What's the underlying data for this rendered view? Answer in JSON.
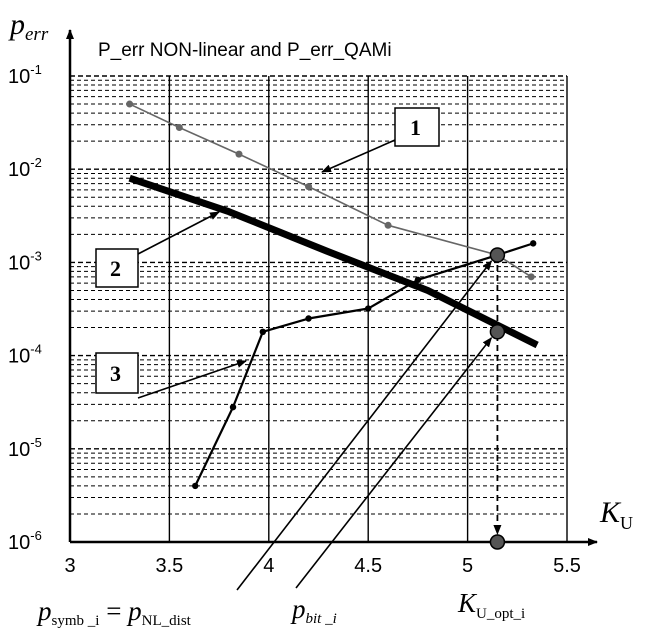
{
  "chart_data": {
    "type": "line",
    "title": "P_err NON-linear and P_err_QAMi",
    "ylabel": {
      "base": "p",
      "sub": "err"
    },
    "xlabel": {
      "base": "K",
      "sub": "U"
    },
    "xlim": [
      3,
      5.5
    ],
    "ylim": [
      1e-06,
      0.1
    ],
    "yscale": "log",
    "grid": true,
    "x_ticks": [
      "3",
      "3.5",
      "4",
      "4.5",
      "5",
      "5.5"
    ],
    "y_ticks": [
      {
        "base": "10",
        "exp": "-1"
      },
      {
        "base": "10",
        "exp": "-2"
      },
      {
        "base": "10",
        "exp": "-3"
      },
      {
        "base": "10",
        "exp": "-4"
      },
      {
        "base": "10",
        "exp": "-5"
      },
      {
        "base": "10",
        "exp": "-6"
      }
    ],
    "series": [
      {
        "name": "1",
        "style": "thin-gray-with-dots",
        "color": "#666666",
        "points": [
          [
            3.3,
            0.05
          ],
          [
            3.55,
            0.028
          ],
          [
            3.85,
            0.0145
          ],
          [
            4.2,
            0.0065
          ],
          [
            4.6,
            0.0025
          ],
          [
            5.15,
            0.0012
          ],
          [
            5.32,
            0.0007
          ]
        ]
      },
      {
        "name": "2",
        "style": "thick-black",
        "color": "#000000",
        "points": [
          [
            3.3,
            0.008
          ],
          [
            3.8,
            0.0035
          ],
          [
            4.3,
            0.0013
          ],
          [
            4.8,
            0.0005
          ],
          [
            5.35,
            0.00013
          ]
        ]
      },
      {
        "name": "3",
        "style": "black-with-markers",
        "color": "#000000",
        "points": [
          [
            3.63,
            4e-06
          ],
          [
            3.82,
            2.8e-05
          ],
          [
            3.97,
            0.00018
          ],
          [
            4.2,
            0.00025
          ],
          [
            4.5,
            0.00032
          ],
          [
            4.75,
            0.00065
          ],
          [
            5.15,
            0.0012
          ],
          [
            5.33,
            0.0016
          ]
        ]
      }
    ],
    "highlight_points": [
      [
        5.15,
        0.0012
      ],
      [
        5.15,
        0.00018
      ],
      [
        5.15,
        1e-06
      ]
    ],
    "optimum_marker": {
      "x": 5.15
    },
    "annotations": {
      "p_symb": {
        "base": "p",
        "sub": "symb _i",
        "eq": " = ",
        "base2": "p",
        "sub2": "NL_dist"
      },
      "p_bit": {
        "base": "p",
        "sub": "bit _i"
      },
      "k_opt": {
        "base": "K",
        "sub": "U_opt_i"
      }
    }
  }
}
